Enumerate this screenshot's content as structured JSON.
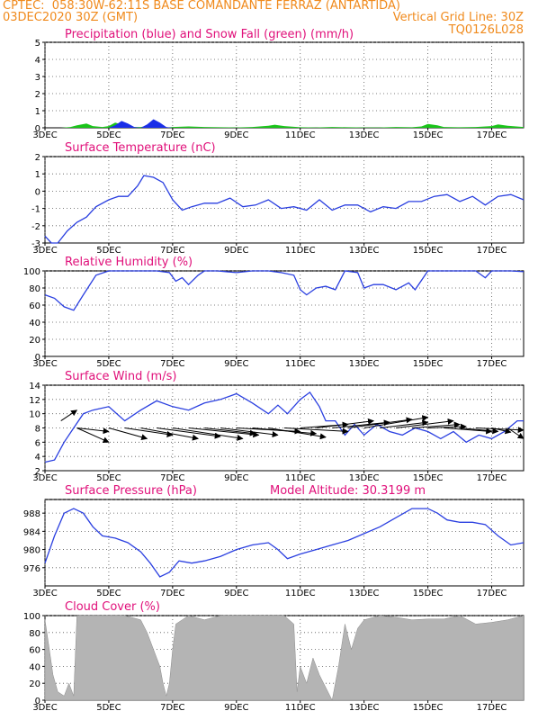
{
  "header": {
    "left1": "CPTEC:",
    "station": "058:30W-62:11S  BASE COMANDANTE FERRAZ (ANTARTIDA)",
    "run": "03DEC2020 30Z (GMT)",
    "grid_note": "Vertical Grid Line: 30Z",
    "code": "TQ0126L028"
  },
  "colors": {
    "header": "#f08a1c",
    "title": "#e0107a",
    "line": "#2a3fe0",
    "snow": "#19c419",
    "precip": "#1a2ee8",
    "cloud": "#b4b4b4"
  },
  "x_ticks": [
    "3DEC",
    "5DEC",
    "7DEC",
    "9DEC",
    "11DEC",
    "13DEC",
    "15DEC",
    "17DEC"
  ],
  "chart_data": [
    {
      "id": "precip",
      "type": "area",
      "title": "Precipitation (blue) and Snow Fall (green) (mm/h)",
      "ylim": [
        0,
        5
      ],
      "yticks": [
        0,
        1,
        2,
        3,
        4,
        5
      ],
      "x": [
        3.0,
        3.5,
        3.8,
        4.0,
        4.3,
        4.5,
        4.8,
        5.0,
        5.2,
        5.4,
        5.6,
        5.8,
        6.0,
        6.2,
        6.4,
        6.6,
        6.8,
        7.0,
        7.5,
        8.0,
        8.5,
        9.0,
        9.5,
        10.0,
        10.2,
        10.5,
        11.0,
        11.5,
        12.0,
        12.5,
        13.0,
        13.5,
        14.0,
        14.5,
        14.8,
        15.0,
        15.3,
        15.5,
        16.0,
        16.5,
        17.0,
        17.2,
        17.5,
        18.0
      ],
      "series": [
        {
          "name": "snow",
          "values": [
            0,
            0,
            0.05,
            0.15,
            0.25,
            0.1,
            0.05,
            0.1,
            0.3,
            0.2,
            0.1,
            0.05,
            0.05,
            0.1,
            0.05,
            0.02,
            0.02,
            0.05,
            0.08,
            0.05,
            0.03,
            0.02,
            0.05,
            0.12,
            0.18,
            0.1,
            0.03,
            0.02,
            0.05,
            0.03,
            0.02,
            0.02,
            0.05,
            0.03,
            0.08,
            0.22,
            0.15,
            0.05,
            0.03,
            0.05,
            0.1,
            0.2,
            0.12,
            0.05
          ]
        },
        {
          "name": "precip",
          "values": [
            0,
            0,
            0,
            0,
            0,
            0,
            0,
            0,
            0.15,
            0.4,
            0.25,
            0.05,
            0,
            0.2,
            0.5,
            0.3,
            0.05,
            0,
            0,
            0,
            0,
            0,
            0,
            0,
            0,
            0,
            0,
            0,
            0,
            0,
            0,
            0,
            0,
            0,
            0,
            0,
            0,
            0,
            0,
            0,
            0,
            0,
            0,
            0
          ]
        }
      ]
    },
    {
      "id": "temp",
      "type": "line",
      "title": "Surface Temperature (nC)",
      "ylim": [
        -3,
        2
      ],
      "yticks": [
        -3,
        -2,
        -1,
        0,
        1,
        2
      ],
      "x": [
        3.0,
        3.2,
        3.4,
        3.7,
        4.0,
        4.3,
        4.6,
        5.0,
        5.3,
        5.6,
        5.9,
        6.1,
        6.4,
        6.7,
        7.0,
        7.3,
        7.6,
        8.0,
        8.4,
        8.8,
        9.2,
        9.6,
        10.0,
        10.4,
        10.8,
        11.2,
        11.6,
        12.0,
        12.4,
        12.8,
        13.2,
        13.6,
        14.0,
        14.4,
        14.8,
        15.2,
        15.6,
        16.0,
        16.4,
        16.8,
        17.2,
        17.6,
        18.0
      ],
      "series": [
        {
          "name": "",
          "values": [
            -2.6,
            -3.0,
            -3.0,
            -2.3,
            -1.8,
            -1.5,
            -0.9,
            -0.5,
            -0.3,
            -0.3,
            0.3,
            0.9,
            0.8,
            0.5,
            -0.5,
            -1.1,
            -0.9,
            -0.7,
            -0.7,
            -0.4,
            -0.9,
            -0.8,
            -0.5,
            -1.0,
            -0.9,
            -1.1,
            -0.5,
            -1.1,
            -0.8,
            -0.8,
            -1.2,
            -0.9,
            -1.0,
            -0.6,
            -0.6,
            -0.3,
            -0.2,
            -0.6,
            -0.3,
            -0.8,
            -0.3,
            -0.2,
            -0.5
          ]
        }
      ]
    },
    {
      "id": "rh",
      "type": "line",
      "title": "Relative Humidity (%)",
      "ylim": [
        0,
        100
      ],
      "yticks": [
        0,
        20,
        40,
        60,
        80,
        100
      ],
      "x": [
        3.0,
        3.3,
        3.6,
        3.9,
        4.2,
        4.6,
        5.0,
        5.5,
        6.0,
        6.5,
        6.9,
        7.1,
        7.3,
        7.5,
        7.8,
        8.0,
        8.4,
        9.0,
        9.5,
        10.0,
        10.4,
        10.8,
        11.0,
        11.2,
        11.5,
        11.8,
        12.1,
        12.4,
        12.8,
        13.0,
        13.3,
        13.6,
        14.0,
        14.4,
        14.6,
        15.0,
        15.5,
        16.0,
        16.5,
        16.8,
        17.0,
        17.3,
        17.6,
        18.0
      ],
      "series": [
        {
          "name": "",
          "values": [
            72,
            68,
            58,
            54,
            72,
            95,
            100,
            100,
            100,
            100,
            98,
            88,
            92,
            84,
            95,
            100,
            100,
            98,
            100,
            100,
            98,
            95,
            78,
            72,
            80,
            82,
            78,
            100,
            98,
            80,
            84,
            84,
            78,
            86,
            78,
            100,
            100,
            100,
            100,
            92,
            100,
            100,
            100,
            99
          ]
        }
      ]
    },
    {
      "id": "wind",
      "type": "line",
      "title": "Surface Wind (m/s)",
      "ylim": [
        2,
        14
      ],
      "yticks": [
        2,
        4,
        6,
        8,
        10,
        12,
        14
      ],
      "x": [
        3.0,
        3.3,
        3.6,
        3.9,
        4.2,
        4.5,
        5.0,
        5.5,
        6.0,
        6.5,
        7.0,
        7.5,
        8.0,
        8.5,
        9.0,
        9.5,
        10.0,
        10.3,
        10.6,
        11.0,
        11.3,
        11.6,
        11.8,
        12.1,
        12.4,
        12.7,
        13.0,
        13.4,
        13.8,
        14.2,
        14.6,
        15.0,
        15.4,
        15.8,
        16.2,
        16.6,
        17.0,
        17.4,
        17.8,
        18.0
      ],
      "series": [
        {
          "name": "",
          "values": [
            3.2,
            3.5,
            6.0,
            8.0,
            10.0,
            10.5,
            11.0,
            9.0,
            10.5,
            11.8,
            11.0,
            10.5,
            11.5,
            12.0,
            12.8,
            11.5,
            10.0,
            11.2,
            10.0,
            12.0,
            13.0,
            11.0,
            9.0,
            9.0,
            7.0,
            8.5,
            7.0,
            8.5,
            7.5,
            7.0,
            8.0,
            7.5,
            6.5,
            7.5,
            6.0,
            7.0,
            6.5,
            7.5,
            9.0,
            9.0
          ]
        }
      ],
      "arrows": [
        {
          "x": 3.5,
          "y": 9.0,
          "dx": 0.5,
          "dy": 1.5
        },
        {
          "x": 4.0,
          "y": 8.0,
          "dx": 1.0,
          "dy": -2.0
        },
        {
          "x": 4.0,
          "y": 8.0,
          "dx": 1.0,
          "dy": -0.5
        },
        {
          "x": 5.0,
          "y": 8.0,
          "dx": 1.2,
          "dy": -1.5
        },
        {
          "x": 5.5,
          "y": 8.0,
          "dx": 1.5,
          "dy": -1.0
        },
        {
          "x": 6.0,
          "y": 8.0,
          "dx": 1.8,
          "dy": -1.5
        },
        {
          "x": 6.5,
          "y": 8.0,
          "dx": 2.0,
          "dy": -1.2
        },
        {
          "x": 7.0,
          "y": 8.0,
          "dx": 2.2,
          "dy": -1.5
        },
        {
          "x": 7.5,
          "y": 8.0,
          "dx": 2.2,
          "dy": -1.0
        },
        {
          "x": 8.0,
          "y": 8.0,
          "dx": 1.6,
          "dy": -0.8
        },
        {
          "x": 8.5,
          "y": 8.0,
          "dx": 1.8,
          "dy": -1.0
        },
        {
          "x": 9.0,
          "y": 8.0,
          "dx": 2.0,
          "dy": -0.5
        },
        {
          "x": 9.5,
          "y": 8.0,
          "dx": 2.0,
          "dy": -0.8
        },
        {
          "x": 10.0,
          "y": 8.0,
          "dx": 1.8,
          "dy": -1.3
        },
        {
          "x": 10.5,
          "y": 8.0,
          "dx": 2.0,
          "dy": -0.5
        },
        {
          "x": 11.0,
          "y": 8.0,
          "dx": 1.5,
          "dy": 0.5
        },
        {
          "x": 11.5,
          "y": 8.0,
          "dx": 1.8,
          "dy": 1.0
        },
        {
          "x": 12.0,
          "y": 8.0,
          "dx": 1.8,
          "dy": 0.8
        },
        {
          "x": 12.5,
          "y": 8.0,
          "dx": 2.0,
          "dy": 1.2
        },
        {
          "x": 13.0,
          "y": 8.0,
          "dx": 2.0,
          "dy": 1.5
        },
        {
          "x": 13.5,
          "y": 8.0,
          "dx": 1.5,
          "dy": 0.8
        },
        {
          "x": 14.0,
          "y": 8.0,
          "dx": 1.8,
          "dy": 1.0
        },
        {
          "x": 14.5,
          "y": 8.0,
          "dx": 1.5,
          "dy": 0.5
        },
        {
          "x": 15.0,
          "y": 8.0,
          "dx": 1.2,
          "dy": 0.2
        },
        {
          "x": 15.5,
          "y": 8.0,
          "dx": 1.5,
          "dy": -0.5
        },
        {
          "x": 16.0,
          "y": 8.0,
          "dx": 1.2,
          "dy": -0.5
        },
        {
          "x": 16.5,
          "y": 8.0,
          "dx": 1.5,
          "dy": -0.3
        },
        {
          "x": 17.0,
          "y": 8.0,
          "dx": 0.6,
          "dy": -0.6
        },
        {
          "x": 17.5,
          "y": 8.0,
          "dx": 0.5,
          "dy": -1.5
        }
      ]
    },
    {
      "id": "pressure",
      "type": "line",
      "title": "Surface Pressure (hPa)",
      "annotation": "Model Altitude: 30.3199 m",
      "ylim": [
        972,
        991
      ],
      "yticks": [
        976,
        980,
        984,
        988
      ],
      "x": [
        3.0,
        3.3,
        3.6,
        3.9,
        4.2,
        4.5,
        4.8,
        5.2,
        5.6,
        6.0,
        6.3,
        6.6,
        6.9,
        7.2,
        7.6,
        8.0,
        8.5,
        9.0,
        9.5,
        10.0,
        10.3,
        10.6,
        11.0,
        11.5,
        12.0,
        12.5,
        13.0,
        13.5,
        14.0,
        14.5,
        15.0,
        15.3,
        15.6,
        16.0,
        16.4,
        16.8,
        17.2,
        17.6,
        18.0
      ],
      "series": [
        {
          "name": "",
          "values": [
            977.0,
            983.0,
            988.0,
            989.0,
            988.0,
            985.0,
            983.0,
            982.5,
            981.5,
            979.5,
            977.0,
            974.0,
            975.0,
            977.5,
            977.0,
            977.5,
            978.5,
            980.0,
            981.0,
            981.5,
            980.0,
            978.0,
            979.0,
            980.0,
            981.0,
            982.0,
            983.5,
            985.0,
            987.0,
            989.0,
            989.0,
            988.0,
            986.5,
            986.0,
            986.0,
            985.5,
            983.0,
            981.0,
            981.5
          ]
        }
      ]
    },
    {
      "id": "cloud",
      "type": "area",
      "title": "Cloud Cover (%)",
      "ylim": [
        0,
        100
      ],
      "yticks": [
        0,
        20,
        40,
        60,
        80,
        100
      ],
      "x": [
        3.0,
        3.1,
        3.25,
        3.4,
        3.6,
        3.75,
        3.9,
        4.0,
        4.1,
        4.5,
        5.0,
        5.5,
        6.0,
        6.2,
        6.4,
        6.6,
        6.7,
        6.8,
        6.9,
        7.0,
        7.1,
        7.3,
        7.5,
        8.0,
        8.5,
        9.0,
        9.5,
        10.0,
        10.5,
        10.8,
        10.9,
        11.0,
        11.2,
        11.4,
        11.6,
        11.8,
        12.0,
        12.2,
        12.4,
        12.6,
        12.8,
        13.0,
        13.5,
        14.0,
        14.5,
        15.0,
        15.5,
        16.0,
        16.5,
        17.0,
        17.5,
        18.0
      ],
      "series": [
        {
          "name": "",
          "values": [
            95,
            70,
            30,
            10,
            5,
            20,
            5,
            100,
            100,
            100,
            100,
            100,
            95,
            80,
            60,
            40,
            20,
            5,
            20,
            60,
            90,
            95,
            100,
            95,
            100,
            100,
            100,
            100,
            100,
            90,
            10,
            40,
            20,
            50,
            30,
            15,
            0,
            40,
            90,
            60,
            85,
            95,
            100,
            98,
            95,
            96,
            96,
            100,
            90,
            92,
            95,
            100
          ]
        }
      ]
    }
  ]
}
